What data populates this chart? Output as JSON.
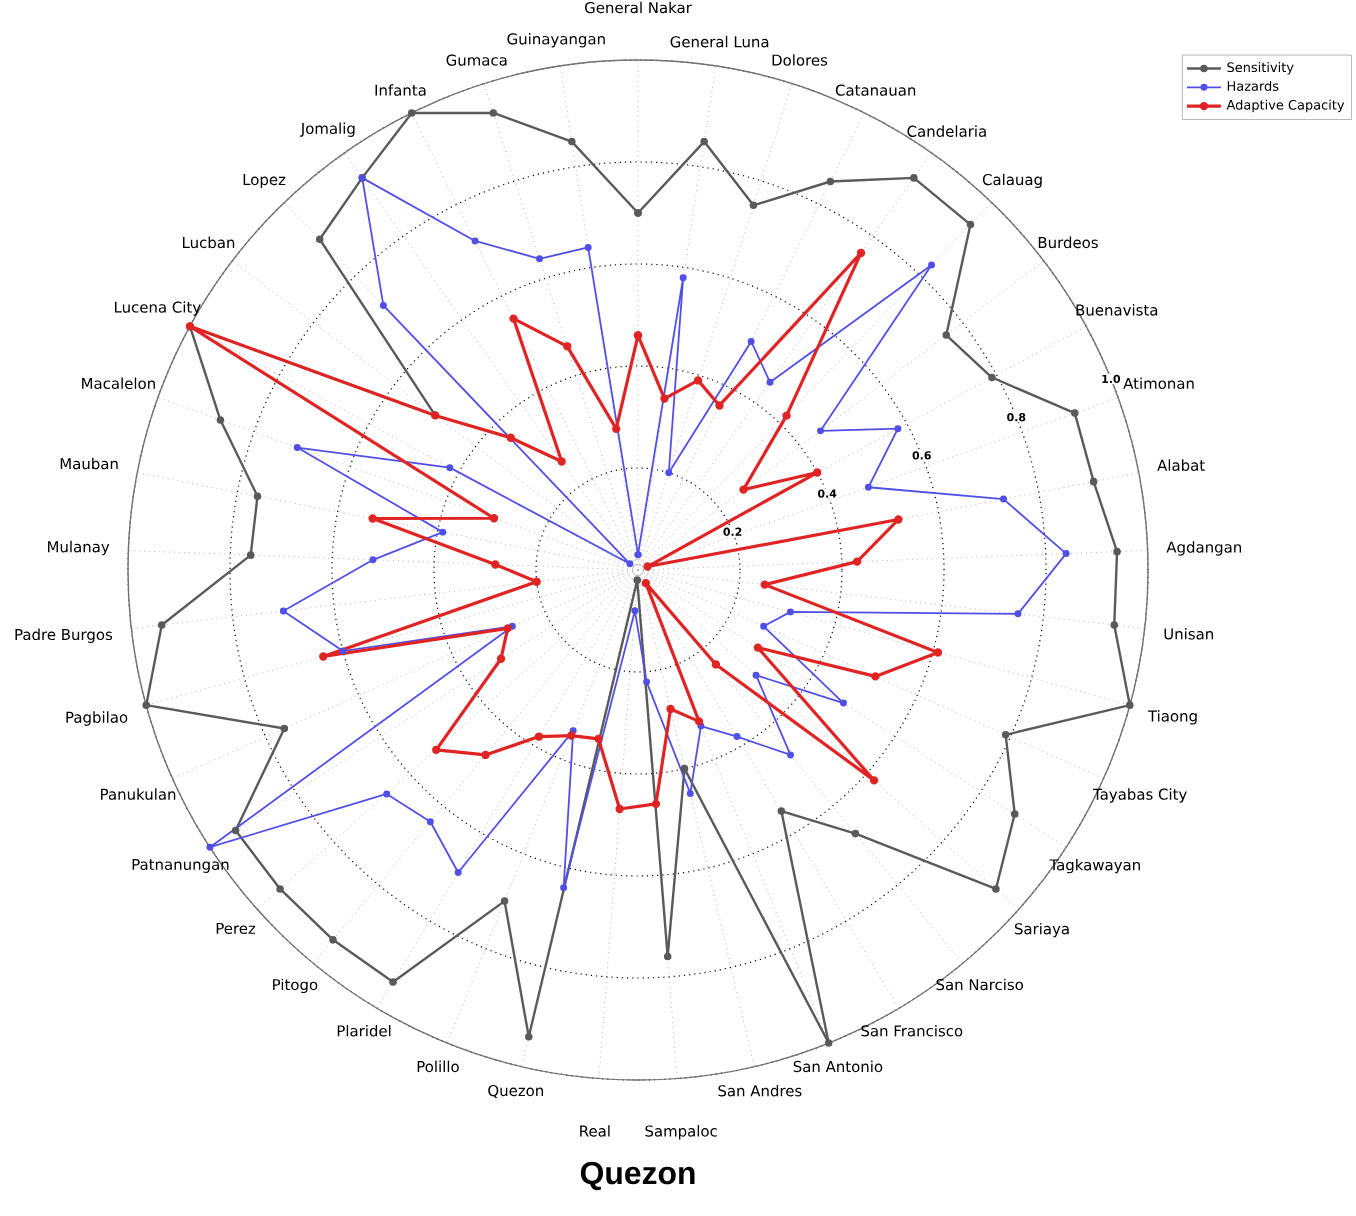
{
  "chart_data": {
    "type": "radar",
    "title": "Quezon",
    "categories": [
      "General Nakar",
      "General Luna",
      "Dolores",
      "Catanauan",
      "Candelaria",
      "Calauag",
      "Burdeos",
      "Buenavista",
      "Atimonan",
      "Alabat",
      "Agdangan",
      "Unisan",
      "Tiaong",
      "Tayabas City",
      "Tagkawayan",
      "Sariaya",
      "San Narciso",
      "San Francisco",
      "San Antonio",
      "San Andres",
      "Sampaloc",
      "Real",
      "Quezon",
      "Polillo",
      "Plaridel",
      "Pitogo",
      "Perez",
      "Patnanungan",
      "Panukulan",
      "Pagbilao",
      "Padre Burgos",
      "Mulanay",
      "Mauban",
      "Macalelon",
      "Lucena City",
      "Lucban",
      "Lopez",
      "Jomalig",
      "Infanta",
      "Gumaca",
      "Guinayangan"
    ],
    "series": [
      {
        "name": "Sensitivity",
        "color": "#5a5a5a",
        "values": [
          0.7,
          0.85,
          0.75,
          0.85,
          0.94,
          0.94,
          0.76,
          0.79,
          0.91,
          0.91,
          0.94,
          0.94,
          1.0,
          0.79,
          0.88,
          0.94,
          0.67,
          0.55,
          1.0,
          0.4,
          0.76,
          0.02,
          0.94,
          0.7,
          0.94,
          0.94,
          0.94,
          0.94,
          0.76,
          1.0,
          0.94,
          0.76,
          0.76,
          0.87,
          1.0,
          0.5,
          0.9,
          0.94,
          1.0,
          0.94,
          0.85
        ]
      },
      {
        "name": "Hazards",
        "color": "#5050e8",
        "values": [
          0.03,
          0.58,
          0.2,
          0.5,
          0.45,
          0.83,
          0.45,
          0.58,
          0.48,
          0.73,
          0.84,
          0.75,
          0.31,
          0.27,
          0.48,
          0.31,
          0.47,
          0.38,
          0.33,
          0.45,
          0.22,
          0.08,
          0.64,
          0.34,
          0.69,
          0.64,
          0.66,
          1.0,
          0.27,
          0.6,
          0.7,
          0.52,
          0.39,
          0.71,
          0.42,
          0.02,
          0.72,
          0.94,
          0.72,
          0.64,
          0.64
        ]
      },
      {
        "name": "Adaptive Capacity",
        "color": "#e02424",
        "values": [
          0.46,
          0.34,
          0.39,
          0.36,
          0.76,
          0.42,
          0.26,
          0.4,
          0.02,
          0.52,
          0.43,
          0.25,
          0.61,
          0.51,
          0.28,
          0.62,
          0.24,
          0.03,
          0.32,
          0.28,
          0.46,
          0.47,
          0.34,
          0.35,
          0.38,
          0.47,
          0.53,
          0.32,
          0.28,
          0.64,
          0.2,
          0.28,
          0.53,
          0.3,
          1.0,
          0.5,
          0.36,
          0.26,
          0.55,
          0.46,
          0.28
        ]
      }
    ],
    "ylim": [
      0,
      1
    ],
    "yticks": [
      0.2,
      0.4,
      0.6,
      0.8,
      {
        "value": 1,
        "label": "1.0"
      }
    ],
    "grid": true,
    "legend": "top right",
    "marker": "circle"
  }
}
